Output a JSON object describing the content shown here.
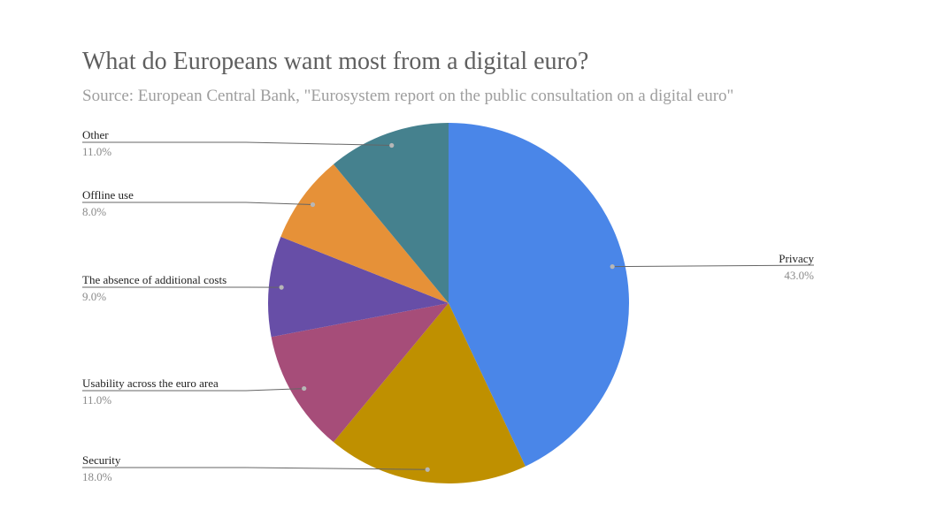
{
  "chart_data": {
    "type": "pie",
    "title": "What do Europeans want most from a digital euro?",
    "subtitle": "Source: European Central Bank, \"Eurosystem report on the public consultation on a digital euro\"",
    "slices": [
      {
        "label": "Privacy",
        "value": 43.0,
        "display": "43.0%",
        "color": "#4a86e8",
        "side": "right"
      },
      {
        "label": "Security",
        "value": 18.0,
        "display": "18.0%",
        "color": "#bf9000",
        "side": "left"
      },
      {
        "label": "Usability across the euro area",
        "value": 11.0,
        "display": "11.0%",
        "color": "#a64d79",
        "side": "left"
      },
      {
        "label": "The absence of additional costs",
        "value": 9.0,
        "display": "9.0%",
        "color": "#674ea7",
        "side": "left"
      },
      {
        "label": "Offline use",
        "value": 8.0,
        "display": "8.0%",
        "color": "#e69138",
        "side": "left"
      },
      {
        "label": "Other",
        "value": 11.0,
        "display": "11.0%",
        "color": "#45818e",
        "side": "left"
      }
    ],
    "start_angle": "12 o'clock",
    "direction": "clockwise",
    "legend": "none"
  }
}
